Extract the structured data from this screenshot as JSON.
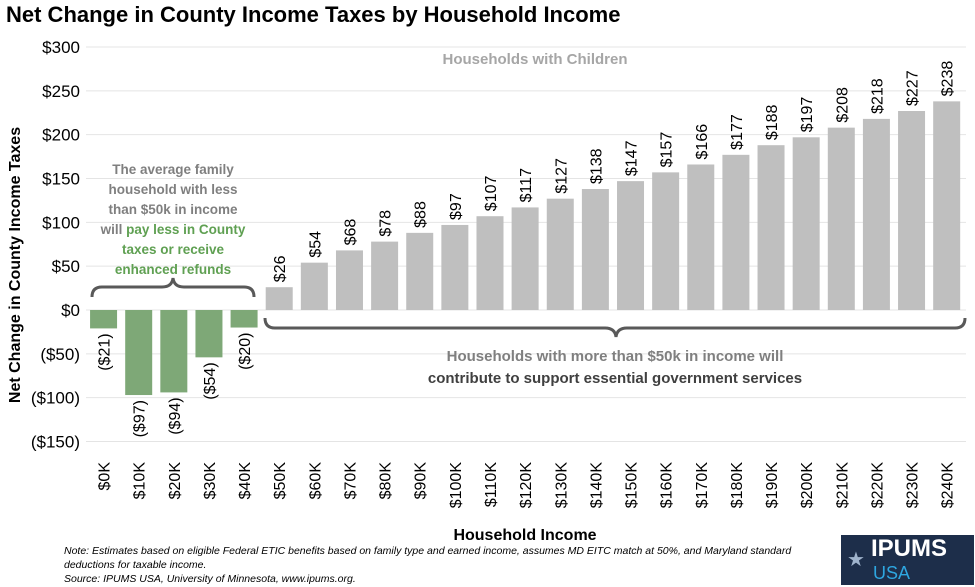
{
  "title": "Net Change in County Income Taxes by Household Income",
  "chart_data": {
    "type": "bar",
    "title": "Net Change in County Income Taxes by Household Income",
    "xlabel": "Household Income",
    "ylabel": "Net Change in County Income Taxes",
    "ylim": [
      -150,
      300
    ],
    "yticks": [
      300,
      250,
      200,
      150,
      100,
      50,
      0,
      -50,
      -100,
      -150
    ],
    "ytick_labels": [
      "$300",
      "$250",
      "$200",
      "$150",
      "$100",
      "$50",
      "$0",
      "($50)",
      "($100)",
      "($150)"
    ],
    "categories": [
      "$0K",
      "$10K",
      "$20K",
      "$30K",
      "$40K",
      "$50K",
      "$60K",
      "$70K",
      "$80K",
      "$90K",
      "$100K",
      "$110K",
      "$120K",
      "$130K",
      "$140K",
      "$150K",
      "$160K",
      "$170K",
      "$180K",
      "$190K",
      "$200K",
      "$210K",
      "$220K",
      "$230K",
      "$240K"
    ],
    "values": [
      -21,
      -97,
      -94,
      -54,
      -20,
      26,
      54,
      68,
      78,
      88,
      97,
      107,
      117,
      127,
      138,
      147,
      157,
      166,
      177,
      188,
      197,
      208,
      218,
      227,
      238
    ],
    "data_labels": [
      "($21)",
      "($97)",
      "($94)",
      "($54)",
      "($20)",
      "$26",
      "$54",
      "$68",
      "$78",
      "$88",
      "$97",
      "$107",
      "$117",
      "$127",
      "$138",
      "$147",
      "$157",
      "$166",
      "$177",
      "$188",
      "$197",
      "$208",
      "$218",
      "$227",
      "$238"
    ],
    "grid": true,
    "colors": {
      "negative": "#7ea877",
      "positive": "#bfbfbf"
    },
    "annotations": {
      "children": "Households with Children",
      "left_lines": [
        "The average family",
        "household with less",
        "than $50k in income",
        "will ",
        "pay less in County",
        "taxes or receive",
        "enhanced refunds"
      ],
      "right_lines": [
        "Households with more than $50k in income will",
        "contribute to support essential government services"
      ]
    }
  },
  "note_line1": "Note: Estimates based on eligible Federal ETIC benefits based on family type and earned income, assumes MD EITC match at 50%, and Maryland standard deductions for taxable income.",
  "note_line2": "Source: IPUMS USA, University of Minnesota, www.ipums.org.",
  "logo": {
    "top": "IPUMS",
    "bottom": "USA"
  }
}
